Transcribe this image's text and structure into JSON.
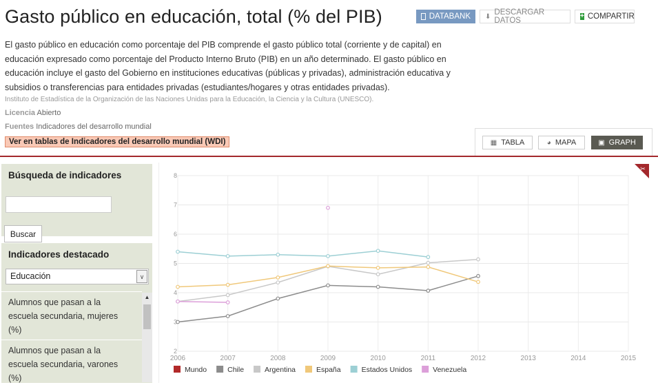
{
  "header": {
    "title": "Gasto público en educación, total (% del PIB)",
    "databank_label": "DATABANK",
    "download_label": "DESCARGAR DATOS",
    "share_label": "COMPARTIR"
  },
  "description": "El gasto público en educación como porcentaje del PIB comprende el gasto público total (corriente y de capital) en educación expresado como porcentaje del Producto Interno Bruto (PIB) en un año determinado. El gasto público en educación incluye el gasto del Gobierno en instituciones educativas (públicas y privadas), administración educativa y subsidios o transferencias para entidades privadas (estudiantes/hogares y otras entidades privadas).",
  "source_text": "Instituto de Estadística de la Organización de las Naciones Unidas para la Educación, la Ciencia y la Cultura (UNESCO).",
  "license": {
    "label": "Licencia",
    "value": "Abierto"
  },
  "sources": {
    "label": "Fuentes",
    "value": "Indicadores del desarrollo mundial"
  },
  "wdi_link": "Ver en tablas de Indicadores del desarrollo mundial (WDI)",
  "view_tabs": [
    {
      "label": "TABLA",
      "icon": "table-icon",
      "active": false
    },
    {
      "label": "MAPA",
      "icon": "globe-icon",
      "active": false
    },
    {
      "label": "GRAPH",
      "icon": "chart-icon",
      "active": true
    }
  ],
  "sidebar": {
    "search_title": "Búsqueda de indicadores",
    "search_value": "",
    "search_button": "Buscar",
    "featured_title": "Indicadores destacado",
    "category_selected": "Educación",
    "items": [
      "Alumnos que pasan a la escuela secundaria, mujeres (%)",
      "Alumnos que pasan a la escuela secundaria, varones (%)"
    ]
  },
  "colors": {
    "accent_red": "#a3282c",
    "panel_bg": "#e2e6d8",
    "databank_blue": "#7899c1"
  },
  "chart_data": {
    "type": "line",
    "title": "",
    "xlabel": "",
    "ylabel": "",
    "xlim": [
      2006,
      2015
    ],
    "ylim": [
      2,
      8
    ],
    "x_ticks": [
      "2006",
      "2007",
      "2008",
      "2009",
      "2010",
      "2011",
      "2012",
      "2013",
      "2014",
      "2015"
    ],
    "y_ticks": [
      "2",
      "3",
      "4",
      "5",
      "6",
      "7",
      "8"
    ],
    "grid": true,
    "legend_position": "bottom-left",
    "series": [
      {
        "name": "Mundo",
        "color": "#b22a2a",
        "points": []
      },
      {
        "name": "Chile",
        "color": "#8c8c8c",
        "points": [
          [
            2006,
            3.0
          ],
          [
            2007,
            3.2
          ],
          [
            2008,
            3.8
          ],
          [
            2009,
            4.25
          ],
          [
            2010,
            4.2
          ],
          [
            2011,
            4.07
          ],
          [
            2012,
            4.57
          ]
        ]
      },
      {
        "name": "Argentina",
        "color": "#c8c8c8",
        "points": [
          [
            2006,
            3.7
          ],
          [
            2007,
            3.92
          ],
          [
            2008,
            4.35
          ],
          [
            2009,
            4.9
          ],
          [
            2010,
            4.63
          ],
          [
            2011,
            5.02
          ],
          [
            2012,
            5.14
          ]
        ]
      },
      {
        "name": "España",
        "color": "#f0c87a",
        "points": [
          [
            2006,
            4.2
          ],
          [
            2007,
            4.27
          ],
          [
            2008,
            4.52
          ],
          [
            2009,
            4.91
          ],
          [
            2010,
            4.85
          ],
          [
            2011,
            4.88
          ],
          [
            2012,
            4.37
          ]
        ]
      },
      {
        "name": "Estados Unidos",
        "color": "#9ccfd4",
        "points": [
          [
            2006,
            5.4
          ],
          [
            2007,
            5.25
          ],
          [
            2008,
            5.3
          ],
          [
            2009,
            5.25
          ],
          [
            2010,
            5.43
          ],
          [
            2011,
            5.22
          ]
        ]
      },
      {
        "name": "Venezuela",
        "color": "#dc9fd9",
        "points": [
          [
            2006,
            3.7
          ],
          [
            2007,
            3.67
          ]
        ],
        "extra_points": [
          [
            2009,
            6.9
          ]
        ]
      }
    ]
  }
}
